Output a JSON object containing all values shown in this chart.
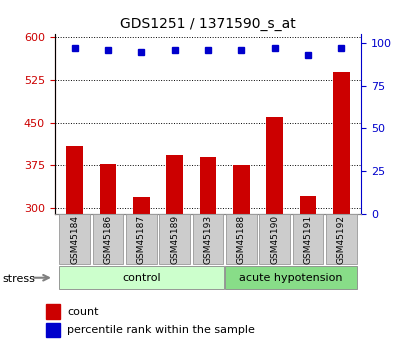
{
  "title": "GDS1251 / 1371590_s_at",
  "samples": [
    "GSM45184",
    "GSM45186",
    "GSM45187",
    "GSM45189",
    "GSM45193",
    "GSM45188",
    "GSM45190",
    "GSM45191",
    "GSM45192"
  ],
  "counts": [
    410,
    378,
    320,
    393,
    390,
    376,
    460,
    322,
    540
  ],
  "percentiles": [
    97,
    96,
    95,
    96,
    96,
    96,
    97,
    93,
    97
  ],
  "bar_color": "#cc0000",
  "dot_color": "#0000cc",
  "ylim_left": [
    290,
    605
  ],
  "ylim_right": [
    0,
    105
  ],
  "yticks_left": [
    300,
    375,
    450,
    525,
    600
  ],
  "yticks_right": [
    0,
    25,
    50,
    75,
    100
  ],
  "title_fontsize": 10,
  "stress_label": "stress",
  "control_color": "#ccffcc",
  "acute_color": "#88dd88",
  "label_box_color": "#cccccc"
}
